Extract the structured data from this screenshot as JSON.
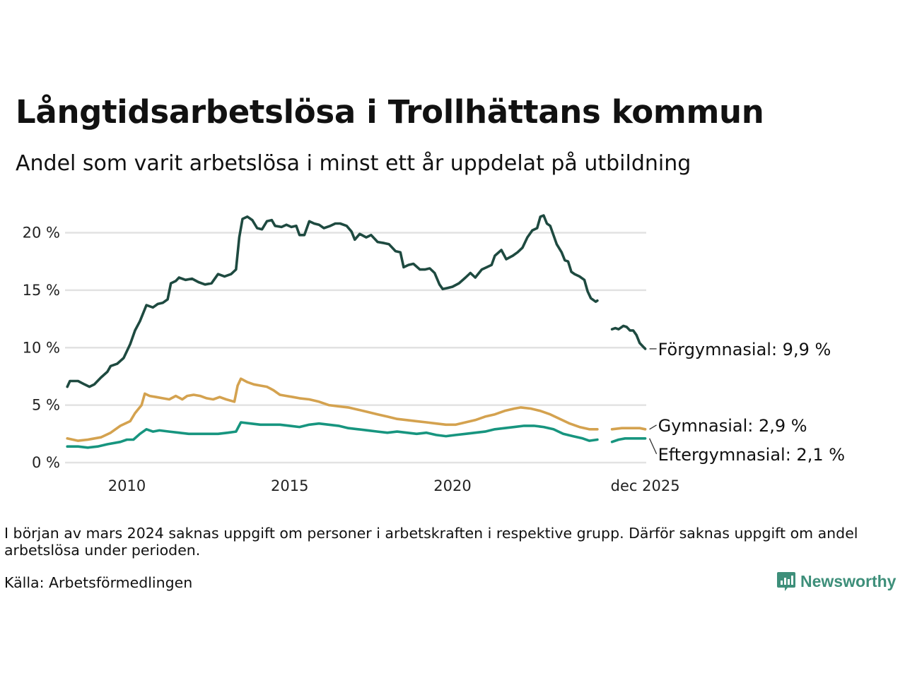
{
  "title": "Långtidsarbetslösa i Trollhättans kommun",
  "subtitle": "Andel som varit arbetslösa i minst ett år uppdelat på utbildning",
  "note": "I början av mars 2024 saknas uppgift om personer i arbetskraften i respektive grupp. Därför saknas uppgift om andel arbetslösa under perioden.",
  "source": "Källa: Arbetsförmedlingen",
  "brand": "Newsworthy",
  "colors": {
    "forgymnasial": "#1e4a40",
    "gymnasial": "#d4a24f",
    "eftergymnasial": "#17957f",
    "grid": "#e2e2e2",
    "brand": "#3e8f7a"
  },
  "chart_data": {
    "type": "line",
    "xlim": [
      2008.1,
      2025.95
    ],
    "ylim": [
      0,
      22
    ],
    "y_ticks": [
      {
        "value": 0,
        "label": "0 %"
      },
      {
        "value": 5,
        "label": "5 %"
      },
      {
        "value": 10,
        "label": "10 %"
      },
      {
        "value": 15,
        "label": "15 %"
      },
      {
        "value": 20,
        "label": "20 %"
      }
    ],
    "x_ticks": [
      {
        "value": 2010,
        "label": "2010"
      },
      {
        "value": 2015,
        "label": "2015"
      },
      {
        "value": 2020,
        "label": "2020"
      },
      {
        "value": 2025.92,
        "label": "dec 2025"
      }
    ],
    "gap": [
      2023.9,
      2024.35
    ],
    "series": [
      {
        "key": "forgymnasial",
        "name": "Förgymnasial",
        "end_label": "Förgymnasial: 9,9 %",
        "points": [
          [
            2008.17,
            6.6
          ],
          [
            2008.25,
            7.1
          ],
          [
            2008.5,
            7.1
          ],
          [
            2008.7,
            6.8
          ],
          [
            2008.85,
            6.6
          ],
          [
            2009.0,
            6.8
          ],
          [
            2009.2,
            7.4
          ],
          [
            2009.4,
            7.9
          ],
          [
            2009.5,
            8.4
          ],
          [
            2009.7,
            8.6
          ],
          [
            2009.9,
            9.1
          ],
          [
            2010.1,
            10.3
          ],
          [
            2010.25,
            11.5
          ],
          [
            2010.4,
            12.3
          ],
          [
            2010.6,
            13.7
          ],
          [
            2010.8,
            13.5
          ],
          [
            2010.95,
            13.8
          ],
          [
            2011.1,
            13.9
          ],
          [
            2011.25,
            14.2
          ],
          [
            2011.35,
            15.6
          ],
          [
            2011.5,
            15.8
          ],
          [
            2011.6,
            16.1
          ],
          [
            2011.8,
            15.9
          ],
          [
            2012.0,
            16.0
          ],
          [
            2012.2,
            15.7
          ],
          [
            2012.4,
            15.5
          ],
          [
            2012.6,
            15.6
          ],
          [
            2012.8,
            16.4
          ],
          [
            2013.0,
            16.2
          ],
          [
            2013.2,
            16.4
          ],
          [
            2013.35,
            16.8
          ],
          [
            2013.45,
            19.6
          ],
          [
            2013.55,
            21.2
          ],
          [
            2013.7,
            21.4
          ],
          [
            2013.85,
            21.1
          ],
          [
            2014.0,
            20.4
          ],
          [
            2014.15,
            20.3
          ],
          [
            2014.3,
            21.0
          ],
          [
            2014.45,
            21.1
          ],
          [
            2014.55,
            20.6
          ],
          [
            2014.75,
            20.5
          ],
          [
            2014.9,
            20.7
          ],
          [
            2015.05,
            20.5
          ],
          [
            2015.2,
            20.6
          ],
          [
            2015.3,
            19.8
          ],
          [
            2015.45,
            19.8
          ],
          [
            2015.6,
            21.0
          ],
          [
            2015.75,
            20.8
          ],
          [
            2015.9,
            20.7
          ],
          [
            2016.05,
            20.4
          ],
          [
            2016.25,
            20.6
          ],
          [
            2016.4,
            20.8
          ],
          [
            2016.55,
            20.8
          ],
          [
            2016.75,
            20.6
          ],
          [
            2016.9,
            20.1
          ],
          [
            2017.0,
            19.4
          ],
          [
            2017.15,
            19.9
          ],
          [
            2017.35,
            19.6
          ],
          [
            2017.5,
            19.8
          ],
          [
            2017.7,
            19.2
          ],
          [
            2017.9,
            19.1
          ],
          [
            2018.05,
            19.0
          ],
          [
            2018.25,
            18.4
          ],
          [
            2018.4,
            18.3
          ],
          [
            2018.5,
            17.0
          ],
          [
            2018.65,
            17.2
          ],
          [
            2018.8,
            17.3
          ],
          [
            2019.0,
            16.8
          ],
          [
            2019.15,
            16.8
          ],
          [
            2019.3,
            16.9
          ],
          [
            2019.45,
            16.5
          ],
          [
            2019.6,
            15.5
          ],
          [
            2019.7,
            15.1
          ],
          [
            2019.85,
            15.2
          ],
          [
            2020.0,
            15.3
          ],
          [
            2020.2,
            15.6
          ],
          [
            2020.4,
            16.1
          ],
          [
            2020.55,
            16.5
          ],
          [
            2020.7,
            16.1
          ],
          [
            2020.9,
            16.8
          ],
          [
            2021.05,
            17.0
          ],
          [
            2021.2,
            17.2
          ],
          [
            2021.3,
            18.0
          ],
          [
            2021.5,
            18.5
          ],
          [
            2021.65,
            17.7
          ],
          [
            2021.85,
            18.0
          ],
          [
            2022.0,
            18.3
          ],
          [
            2022.15,
            18.7
          ],
          [
            2022.3,
            19.6
          ],
          [
            2022.45,
            20.2
          ],
          [
            2022.6,
            20.4
          ],
          [
            2022.7,
            21.4
          ],
          [
            2022.8,
            21.5
          ],
          [
            2022.9,
            20.8
          ],
          [
            2023.0,
            20.6
          ],
          [
            2023.1,
            19.8
          ],
          [
            2023.2,
            19.0
          ],
          [
            2023.35,
            18.3
          ],
          [
            2023.45,
            17.6
          ],
          [
            2023.55,
            17.5
          ],
          [
            2023.65,
            16.6
          ],
          [
            2023.75,
            16.4
          ],
          [
            2023.9,
            16.2
          ],
          [
            2024.05,
            15.9
          ],
          [
            2024.15,
            14.9
          ],
          [
            2024.25,
            14.3
          ],
          [
            2024.4,
            14.0
          ],
          [
            2024.45,
            14.1
          ],
          [
            2024.9,
            11.6
          ],
          [
            2025.0,
            11.7
          ],
          [
            2025.1,
            11.6
          ],
          [
            2025.25,
            11.9
          ],
          [
            2025.35,
            11.8
          ],
          [
            2025.45,
            11.5
          ],
          [
            2025.55,
            11.5
          ],
          [
            2025.65,
            11.1
          ],
          [
            2025.75,
            10.4
          ],
          [
            2025.85,
            10.1
          ],
          [
            2025.92,
            9.9
          ]
        ]
      },
      {
        "key": "gymnasial",
        "name": "Gymnasial",
        "end_label": "Gymnasial: 2,9 %",
        "points": [
          [
            2008.17,
            2.1
          ],
          [
            2008.5,
            1.9
          ],
          [
            2008.8,
            2.0
          ],
          [
            2009.2,
            2.2
          ],
          [
            2009.5,
            2.6
          ],
          [
            2009.8,
            3.2
          ],
          [
            2010.1,
            3.6
          ],
          [
            2010.25,
            4.3
          ],
          [
            2010.45,
            5.0
          ],
          [
            2010.55,
            6.0
          ],
          [
            2010.7,
            5.8
          ],
          [
            2010.9,
            5.7
          ],
          [
            2011.1,
            5.6
          ],
          [
            2011.3,
            5.5
          ],
          [
            2011.5,
            5.8
          ],
          [
            2011.7,
            5.5
          ],
          [
            2011.85,
            5.8
          ],
          [
            2012.05,
            5.9
          ],
          [
            2012.25,
            5.8
          ],
          [
            2012.45,
            5.6
          ],
          [
            2012.65,
            5.5
          ],
          [
            2012.85,
            5.7
          ],
          [
            2013.05,
            5.5
          ],
          [
            2013.3,
            5.3
          ],
          [
            2013.4,
            6.7
          ],
          [
            2013.5,
            7.3
          ],
          [
            2013.7,
            7.0
          ],
          [
            2013.9,
            6.8
          ],
          [
            2014.1,
            6.7
          ],
          [
            2014.3,
            6.6
          ],
          [
            2014.5,
            6.3
          ],
          [
            2014.7,
            5.9
          ],
          [
            2014.9,
            5.8
          ],
          [
            2015.1,
            5.7
          ],
          [
            2015.3,
            5.6
          ],
          [
            2015.6,
            5.5
          ],
          [
            2015.9,
            5.3
          ],
          [
            2016.2,
            5.0
          ],
          [
            2016.5,
            4.9
          ],
          [
            2016.8,
            4.8
          ],
          [
            2017.1,
            4.6
          ],
          [
            2017.4,
            4.4
          ],
          [
            2017.7,
            4.2
          ],
          [
            2018.0,
            4.0
          ],
          [
            2018.3,
            3.8
          ],
          [
            2018.6,
            3.7
          ],
          [
            2018.9,
            3.6
          ],
          [
            2019.2,
            3.5
          ],
          [
            2019.5,
            3.4
          ],
          [
            2019.8,
            3.3
          ],
          [
            2020.1,
            3.3
          ],
          [
            2020.4,
            3.5
          ],
          [
            2020.7,
            3.7
          ],
          [
            2021.0,
            4.0
          ],
          [
            2021.3,
            4.2
          ],
          [
            2021.6,
            4.5
          ],
          [
            2021.9,
            4.7
          ],
          [
            2022.1,
            4.8
          ],
          [
            2022.4,
            4.7
          ],
          [
            2022.7,
            4.5
          ],
          [
            2023.0,
            4.2
          ],
          [
            2023.3,
            3.8
          ],
          [
            2023.6,
            3.4
          ],
          [
            2023.9,
            3.1
          ],
          [
            2024.2,
            2.9
          ],
          [
            2024.45,
            2.9
          ],
          [
            2024.9,
            2.9
          ],
          [
            2025.2,
            3.0
          ],
          [
            2025.5,
            3.0
          ],
          [
            2025.75,
            3.0
          ],
          [
            2025.92,
            2.9
          ]
        ]
      },
      {
        "key": "eftergymnasial",
        "name": "Eftergymnasial",
        "end_label": "Eftergymnasial: 2,1 %",
        "points": [
          [
            2008.17,
            1.4
          ],
          [
            2008.5,
            1.4
          ],
          [
            2008.8,
            1.3
          ],
          [
            2009.1,
            1.4
          ],
          [
            2009.4,
            1.6
          ],
          [
            2009.8,
            1.8
          ],
          [
            2010.0,
            2.0
          ],
          [
            2010.2,
            2.0
          ],
          [
            2010.4,
            2.5
          ],
          [
            2010.6,
            2.9
          ],
          [
            2010.8,
            2.7
          ],
          [
            2011.0,
            2.8
          ],
          [
            2011.3,
            2.7
          ],
          [
            2011.6,
            2.6
          ],
          [
            2011.9,
            2.5
          ],
          [
            2012.2,
            2.5
          ],
          [
            2012.5,
            2.5
          ],
          [
            2012.8,
            2.5
          ],
          [
            2013.1,
            2.6
          ],
          [
            2013.35,
            2.7
          ],
          [
            2013.5,
            3.5
          ],
          [
            2013.8,
            3.4
          ],
          [
            2014.1,
            3.3
          ],
          [
            2014.4,
            3.3
          ],
          [
            2014.7,
            3.3
          ],
          [
            2015.0,
            3.2
          ],
          [
            2015.3,
            3.1
          ],
          [
            2015.6,
            3.3
          ],
          [
            2015.9,
            3.4
          ],
          [
            2016.2,
            3.3
          ],
          [
            2016.5,
            3.2
          ],
          [
            2016.8,
            3.0
          ],
          [
            2017.1,
            2.9
          ],
          [
            2017.4,
            2.8
          ],
          [
            2017.7,
            2.7
          ],
          [
            2018.0,
            2.6
          ],
          [
            2018.3,
            2.7
          ],
          [
            2018.6,
            2.6
          ],
          [
            2018.9,
            2.5
          ],
          [
            2019.2,
            2.6
          ],
          [
            2019.5,
            2.4
          ],
          [
            2019.8,
            2.3
          ],
          [
            2020.1,
            2.4
          ],
          [
            2020.4,
            2.5
          ],
          [
            2020.7,
            2.6
          ],
          [
            2021.0,
            2.7
          ],
          [
            2021.3,
            2.9
          ],
          [
            2021.6,
            3.0
          ],
          [
            2021.9,
            3.1
          ],
          [
            2022.2,
            3.2
          ],
          [
            2022.5,
            3.2
          ],
          [
            2022.8,
            3.1
          ],
          [
            2023.1,
            2.9
          ],
          [
            2023.4,
            2.5
          ],
          [
            2023.7,
            2.3
          ],
          [
            2024.0,
            2.1
          ],
          [
            2024.2,
            1.9
          ],
          [
            2024.45,
            2.0
          ],
          [
            2024.9,
            1.8
          ],
          [
            2025.1,
            2.0
          ],
          [
            2025.3,
            2.1
          ],
          [
            2025.5,
            2.1
          ],
          [
            2025.7,
            2.1
          ],
          [
            2025.92,
            2.1
          ]
        ]
      }
    ]
  }
}
